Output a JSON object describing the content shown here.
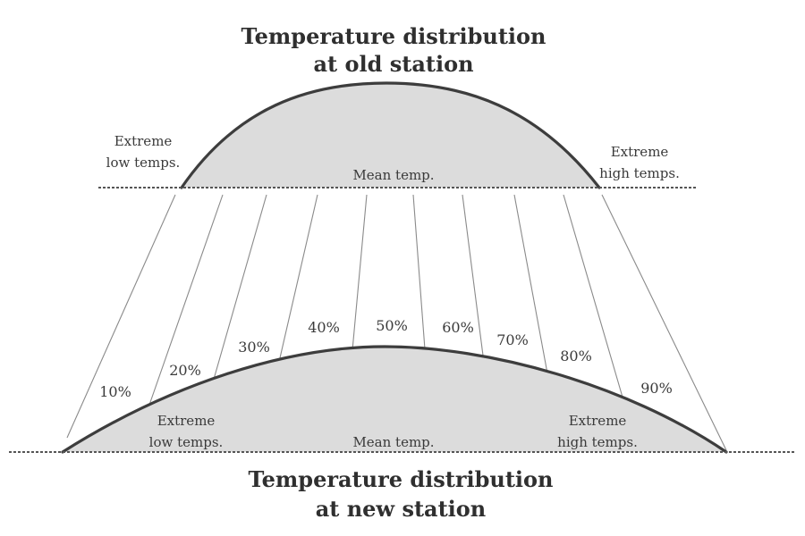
{
  "top_distribution": {
    "title_line1": "Temperature distribution",
    "title_line2": "at old station",
    "extreme_low_line1": "Extreme",
    "extreme_low_line2": "low temps.",
    "mean_label": "Mean temp.",
    "extreme_high_line1": "Extreme",
    "extreme_high_line2": "high temps."
  },
  "bottom_distribution": {
    "title_line1": "Temperature distribution",
    "title_line2": "at new station",
    "extreme_low_line1": "Extreme",
    "extreme_low_line2": "low temps.",
    "mean_label": "Mean temp.",
    "extreme_high_line1": "Extreme",
    "extreme_high_line2": "high temps."
  },
  "percentile_labels": [
    "10%",
    "20%",
    "30%",
    "40%",
    "50%",
    "60%",
    "70%",
    "80%",
    "90%"
  ]
}
